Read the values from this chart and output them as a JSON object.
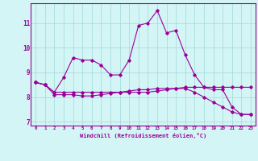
{
  "xlabel": "Windchill (Refroidissement éolien,°C)",
  "line_color": "#990099",
  "bg_color": "#d4f5f5",
  "grid_color": "#aadddd",
  "x": [
    0,
    1,
    2,
    3,
    4,
    5,
    6,
    7,
    8,
    9,
    10,
    11,
    12,
    13,
    14,
    15,
    16,
    17,
    18,
    19,
    20,
    21,
    22,
    23
  ],
  "line1": [
    8.6,
    8.5,
    8.2,
    8.8,
    9.6,
    9.5,
    9.5,
    9.3,
    8.9,
    8.9,
    9.5,
    10.9,
    11.0,
    11.5,
    10.6,
    10.7,
    9.7,
    8.9,
    8.4,
    8.3,
    8.3,
    7.6,
    7.3,
    7.3
  ],
  "line2": [
    8.6,
    8.5,
    8.2,
    8.2,
    8.2,
    8.2,
    8.2,
    8.2,
    8.2,
    8.2,
    8.2,
    8.2,
    8.2,
    8.25,
    8.3,
    8.35,
    8.4,
    8.4,
    8.4,
    8.4,
    8.4,
    8.4,
    8.4,
    8.4
  ],
  "line3": [
    8.6,
    8.5,
    8.1,
    8.1,
    8.1,
    8.05,
    8.05,
    8.1,
    8.15,
    8.2,
    8.25,
    8.3,
    8.3,
    8.35,
    8.35,
    8.35,
    8.35,
    8.2,
    8.0,
    7.8,
    7.6,
    7.4,
    7.3,
    7.3
  ],
  "ylim": [
    6.85,
    11.8
  ],
  "yticks": [
    7,
    8,
    9,
    10,
    11
  ],
  "xlim": [
    -0.5,
    23.5
  ]
}
